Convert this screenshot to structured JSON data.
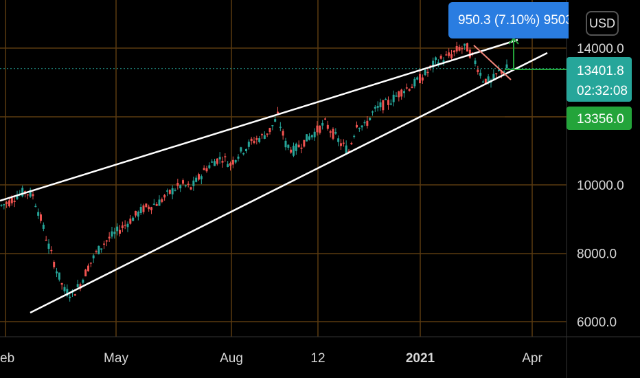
{
  "currency_button": "USD",
  "measure_label": "950.3 (7.10%) 9503",
  "price_badge": {
    "value": "13401.8",
    "countdown": "02:32:08",
    "color": "#26a69a"
  },
  "target_badge": {
    "value": "13356.0",
    "color": "#23a43a"
  },
  "colors": {
    "up": "#26a69a",
    "down": "#ef5350",
    "grid": "#5a3a10",
    "trendline": "#ffffff",
    "correction_line": "#f0857a",
    "measure": "#23a43a"
  },
  "chart_data": {
    "type": "candlestick",
    "x_ticks": [
      "eb",
      "May",
      "Aug",
      "12",
      "2021",
      "Apr"
    ],
    "y_ticks": [
      "14000.0",
      "10000.0",
      "8000.0",
      "6000.0"
    ],
    "ylim": [
      5800,
      15000
    ],
    "grid": true,
    "price_series": [
      9400,
      9500,
      9700,
      9800,
      9700,
      9000,
      8200,
      7500,
      6900,
      6800,
      7100,
      7600,
      8000,
      8300,
      8500,
      8700,
      8900,
      9100,
      9300,
      9400,
      9500,
      9700,
      9900,
      10000,
      9900,
      10200,
      10500,
      10700,
      10800,
      10600,
      10900,
      11100,
      11300,
      11400,
      11600,
      12000,
      11200,
      11000,
      11200,
      11400,
      11600,
      11800,
      11500,
      11200,
      11000,
      11800,
      11700,
      12100,
      12300,
      12400,
      12600,
      12800,
      12900,
      13100,
      13300,
      13600,
      13700,
      13800,
      14000,
      14000,
      13600,
      13100,
      13000,
      13300,
      13401.8
    ],
    "trendlines": [
      {
        "name": "upper",
        "from": [
          0,
          9800
        ],
        "to": [
          75,
          14200
        ]
      },
      {
        "name": "lower",
        "from": [
          3,
          6300
        ],
        "to": [
          78,
          13900
        ]
      }
    ],
    "measure": {
      "change": 950.3,
      "percent": 7.1
    }
  }
}
